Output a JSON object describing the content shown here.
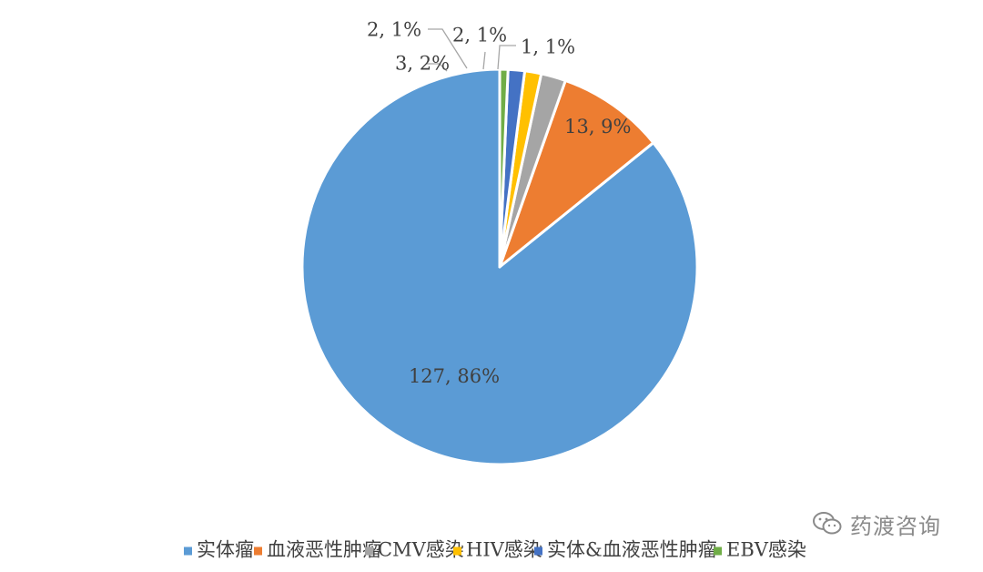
{
  "chart_data": {
    "type": "pie",
    "title": "",
    "categories": [
      "实体瘤",
      "血液恶性肿瘤",
      "CMV感染",
      "HIV感染",
      "实体&血液恶性肿瘤",
      "EBV感染"
    ],
    "values": [
      127,
      13,
      3,
      2,
      2,
      1
    ],
    "percent_labels": [
      "86%",
      "9%",
      "2%",
      "1%",
      "1%",
      "1%"
    ],
    "data_labels": [
      "127, 86%",
      "13, 9%",
      "3, 2%",
      "2, 1%",
      "2, 1%",
      "1, 1%"
    ],
    "colors": [
      "#5B9BD5",
      "#ED7D31",
      "#A5A5A5",
      "#FFC000",
      "#4472C4",
      "#70AD47"
    ],
    "start_angle": "12 o'clock",
    "direction": "counter-clockwise",
    "legend_position": "bottom"
  },
  "watermark": {
    "text": "药渡咨询",
    "icon": "wechat-icon"
  }
}
